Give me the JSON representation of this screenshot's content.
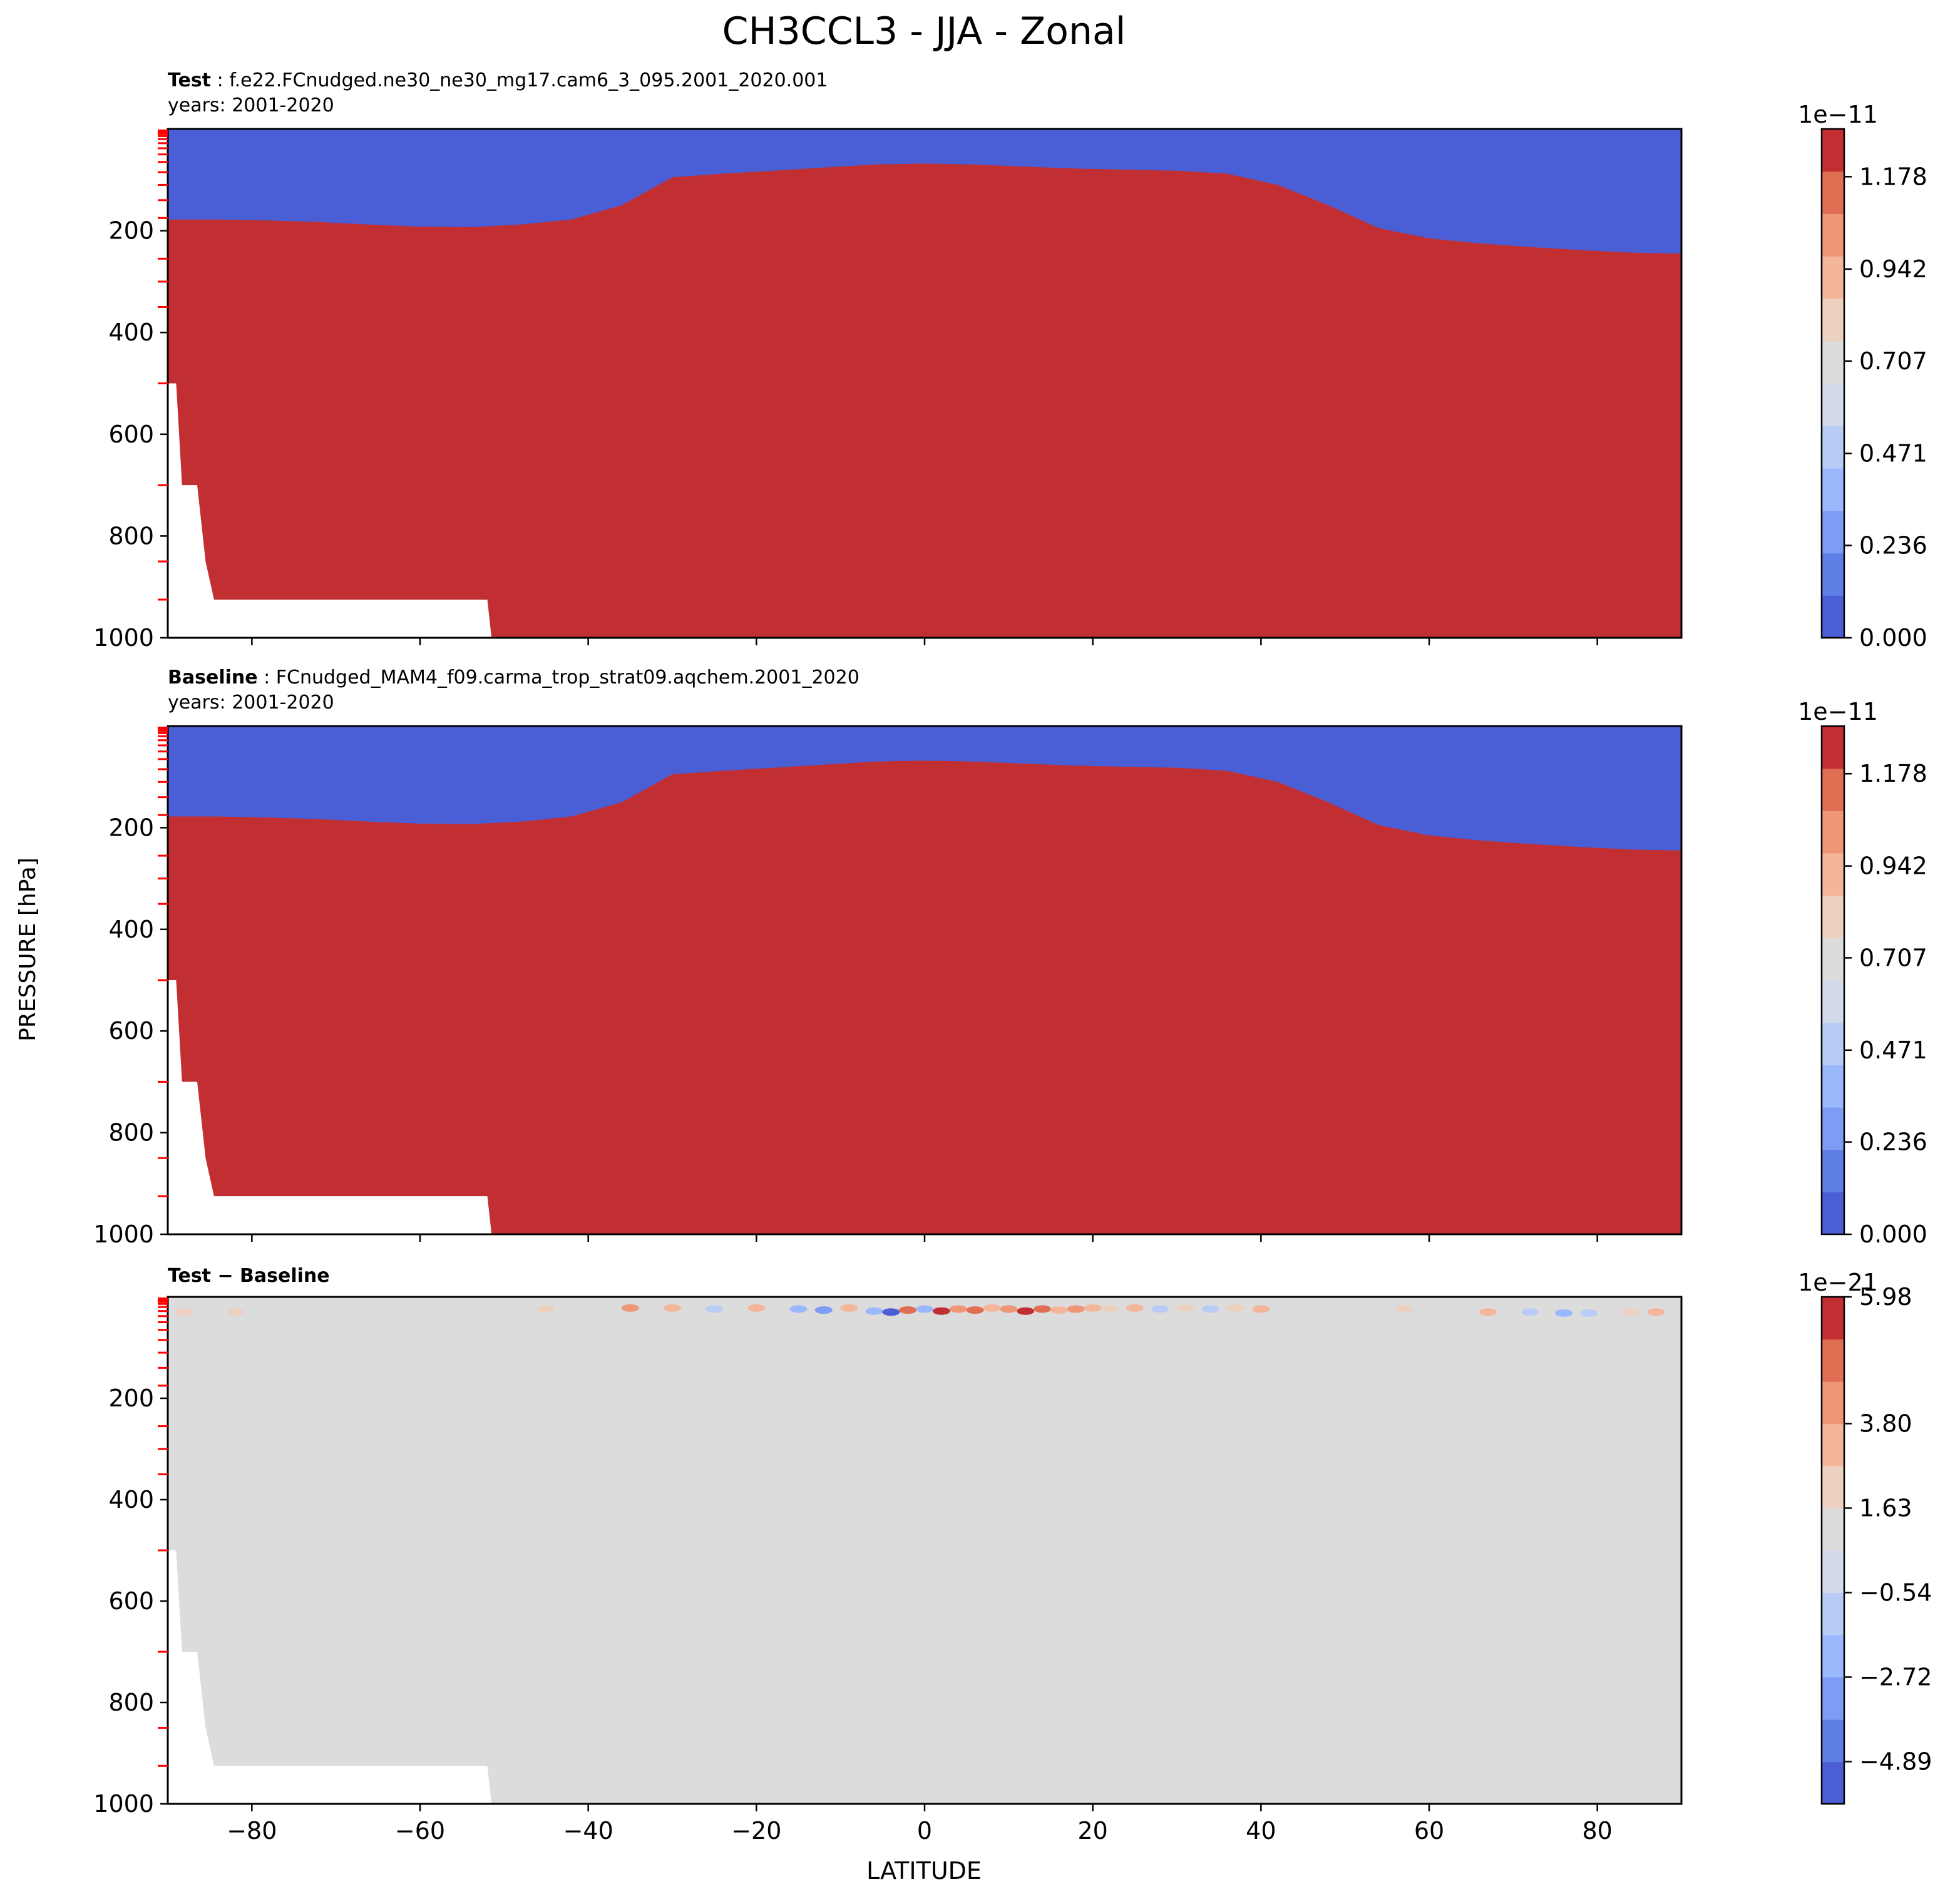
{
  "title": "CH3CCL3 - JJA - Zonal",
  "ylabel": "PRESSURE [hPa]",
  "xlabel": "LATITUDE",
  "colors": {
    "fill_dark_red": "#c22f32",
    "cmap": [
      "#4a5fd6",
      "#5f7ee6",
      "#7d9cf3",
      "#9ab8fc",
      "#b9ccf5",
      "#d3dbeb",
      "#dcdcdc",
      "#ecd1c1",
      "#f4b69a",
      "#ef9677",
      "#e06e53",
      "#c22f32"
    ],
    "tick_marker": "#ff0000",
    "surface_mask": "#ffffff"
  },
  "chart_data": [
    {
      "type": "heatmap",
      "panel": "test",
      "title_bold": "Test",
      "title_rest": ": f.e22.FCnudged.ne30_ne30_mg17.cam6_3_095.2001_2020.001",
      "subtitle": "years: 2001-2020",
      "xlim": [
        -90,
        90
      ],
      "ylim": [
        1000,
        0
      ],
      "yticks": [
        "200",
        "400",
        "600",
        "800",
        "1000"
      ],
      "xticks": [],
      "colorbar": {
        "exponent": "1e−11",
        "ticks": [
          "0.000",
          "0.236",
          "0.471",
          "0.707",
          "0.942",
          "1.178"
        ],
        "min": 0,
        "max": 1.3
      },
      "description_values": {
        "troposphere": 1.2,
        "top_of_atmosphere": 0.0
      }
    },
    {
      "type": "heatmap",
      "panel": "baseline",
      "title_bold": "Baseline",
      "title_rest": ": FCnudged_MAM4_f09.carma_trop_strat09.aqchem.2001_2020",
      "subtitle": "years: 2001-2020",
      "xlim": [
        -90,
        90
      ],
      "ylim": [
        1000,
        0
      ],
      "yticks": [
        "200",
        "400",
        "600",
        "800",
        "1000"
      ],
      "xticks": [],
      "colorbar": {
        "exponent": "1e−11",
        "ticks": [
          "0.000",
          "0.236",
          "0.471",
          "0.707",
          "0.942",
          "1.178"
        ],
        "min": 0,
        "max": 1.3
      },
      "description_values": {
        "troposphere": 1.2,
        "top_of_atmosphere": 0.0
      }
    },
    {
      "type": "heatmap",
      "panel": "diff",
      "title_bold": "Test − Baseline",
      "title_rest": "",
      "subtitle": "",
      "xlim": [
        -90,
        90
      ],
      "ylim": [
        1000,
        0
      ],
      "yticks": [
        "200",
        "400",
        "600",
        "800",
        "1000"
      ],
      "xticks": [
        "−80",
        "−60",
        "−40",
        "−20",
        "0",
        "20",
        "40",
        "60",
        "80"
      ],
      "colorbar": {
        "exponent": "1e−21",
        "ticks": [
          "−4.89",
          "−2.72",
          "−0.54",
          "1.63",
          "3.80",
          "5.98"
        ],
        "top_label": "5.98"
      },
      "description_values": {
        "background": 0.0
      }
    }
  ]
}
